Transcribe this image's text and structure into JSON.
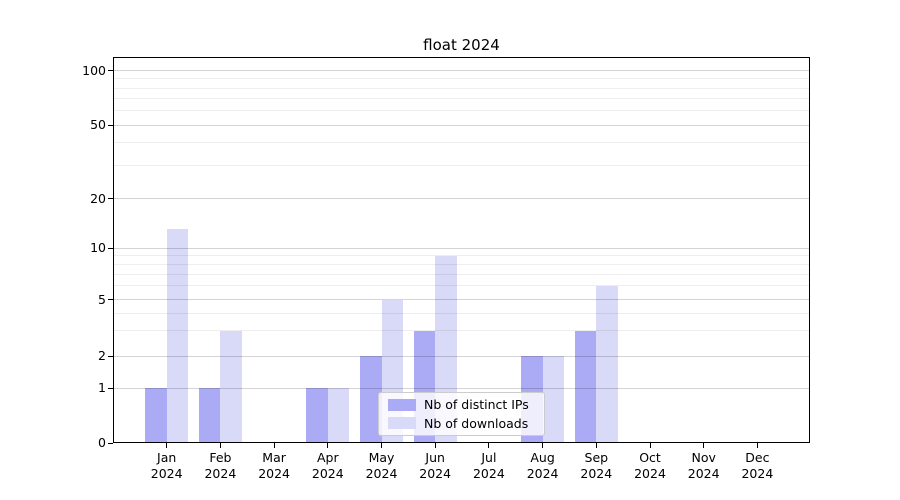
{
  "title": "float 2024",
  "chart_data": {
    "type": "bar",
    "categories": [
      "Jan 2024",
      "Feb 2024",
      "Mar 2024",
      "Apr 2024",
      "May 2024",
      "Jun 2024",
      "Jul 2024",
      "Aug 2024",
      "Sep 2024",
      "Oct 2024",
      "Nov 2024",
      "Dec 2024"
    ],
    "month_labels": [
      "Jan",
      "Feb",
      "Mar",
      "Apr",
      "May",
      "Jun",
      "Jul",
      "Aug",
      "Sep",
      "Oct",
      "Nov",
      "Dec"
    ],
    "year": "2024",
    "series": [
      {
        "name": "Nb of distinct IPs",
        "color": "#aaaaf5",
        "values": [
          1,
          1,
          0,
          1,
          2,
          3,
          0,
          2,
          3,
          0,
          0,
          0
        ]
      },
      {
        "name": "Nb of downloads",
        "color": "#d9d9f8",
        "values": [
          13,
          3,
          0,
          1,
          5,
          9,
          0,
          2,
          6,
          0,
          0,
          0
        ]
      }
    ],
    "title": "float 2024",
    "xlabel": "",
    "ylabel": "",
    "yscale": "symlog",
    "y_ticks": [
      0,
      1,
      2,
      5,
      10,
      20,
      50,
      100
    ],
    "y_minor_ticks": [
      3,
      4,
      6,
      7,
      8,
      9,
      30,
      40,
      60,
      70,
      80,
      90
    ],
    "ylim": [
      0,
      120
    ],
    "grid": "on",
    "legend_position": "lower center"
  },
  "legend": {
    "items": [
      "Nb of distinct IPs",
      "Nb of downloads"
    ]
  },
  "colors": {
    "bar_distinct_ips": "#aaaaf5",
    "bar_downloads": "#d9d9f8",
    "axis": "#000000",
    "background": "#ffffff",
    "grid_major": "#d4d4d4",
    "grid_minor": "#efefef"
  }
}
